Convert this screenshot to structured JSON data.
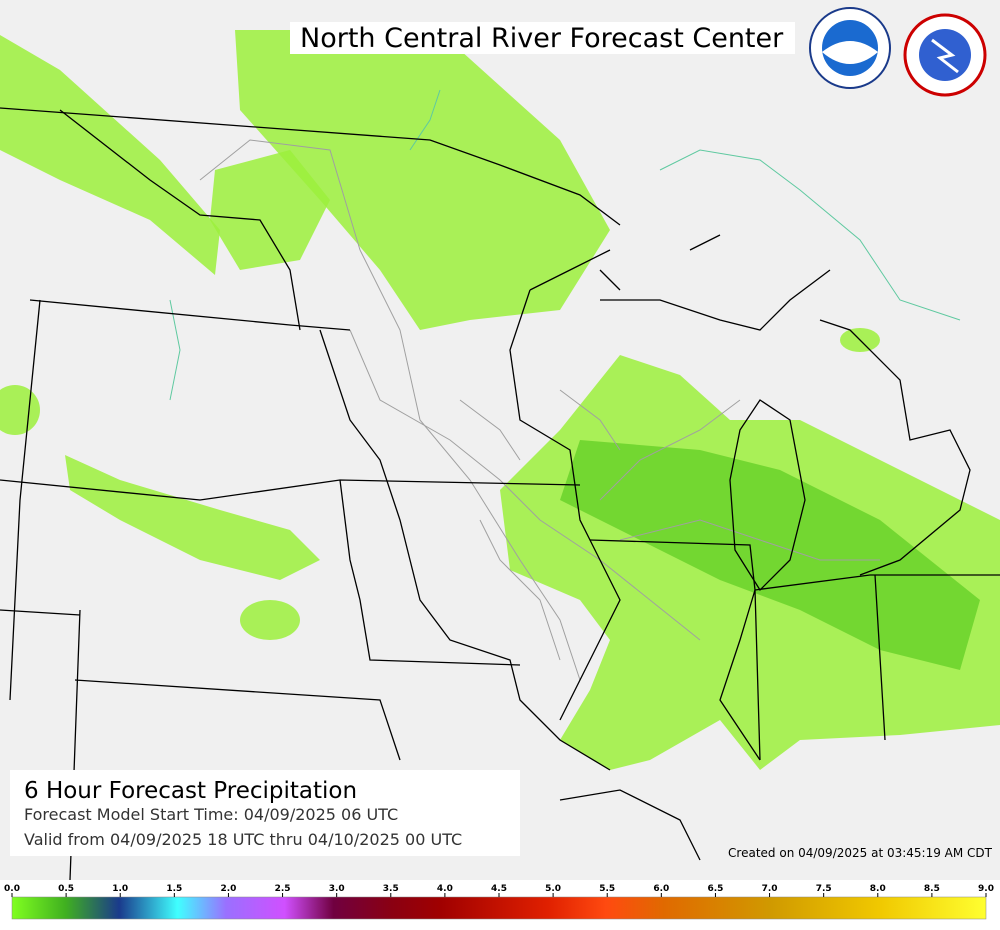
{
  "header": {
    "title": "North Central River Forecast Center"
  },
  "info": {
    "product": "6 Hour Forecast Precipitation",
    "model_start": "Forecast Model Start Time:  04/09/2025 06 UTC",
    "valid": "Valid from 04/09/2025 18 UTC thru 04/10/2025 00 UTC"
  },
  "created": "Created on 04/09/2025 at 03:45:19 AM CDT",
  "legend": {
    "range": [
      0,
      9
    ],
    "ticks": [
      {
        "value": 0,
        "label": "0.0"
      },
      0.5,
      {
        "value": 1,
        "label": "1.0"
      },
      1.5,
      {
        "value": 2,
        "label": "2.0"
      },
      2.5,
      {
        "value": 3,
        "label": "3.0"
      },
      3.5,
      {
        "value": 4,
        "label": "4.0"
      },
      4.5,
      {
        "value": 5,
        "label": "5.0"
      },
      5.5,
      {
        "value": 6,
        "label": "6.0"
      },
      6.5,
      {
        "value": 7,
        "label": "7.0"
      },
      7.5,
      {
        "value": 8,
        "label": "8.0"
      },
      8.5,
      {
        "value": 9,
        "label": "9.0"
      }
    ]
  }
}
